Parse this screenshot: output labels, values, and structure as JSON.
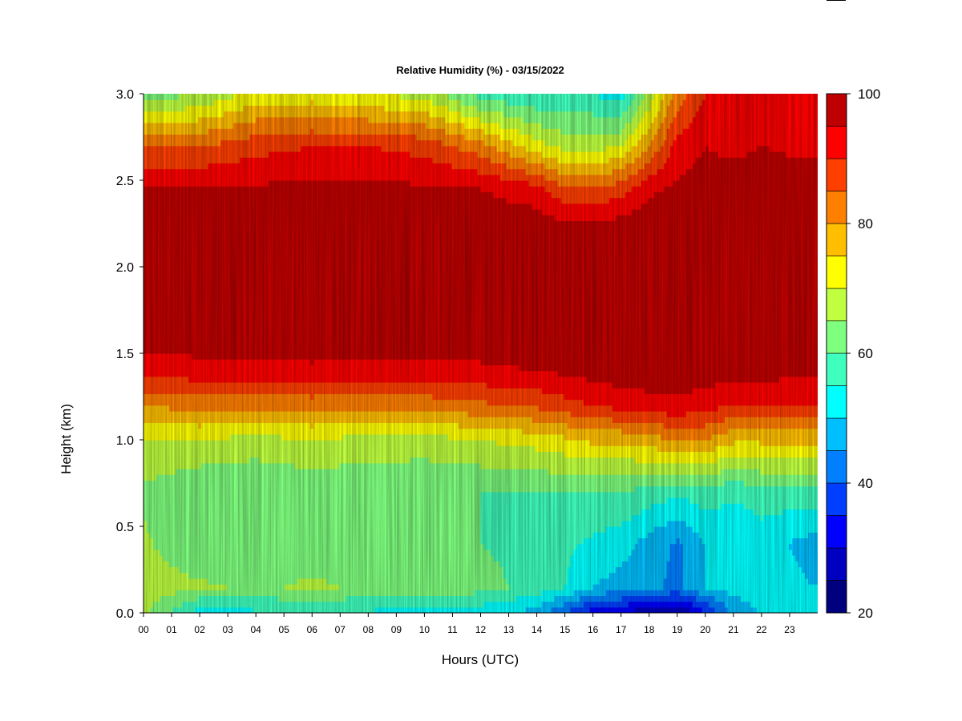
{
  "chart_data": {
    "type": "heatmap",
    "title": "Relative Humidity (%) - 03/15/2022",
    "xlabel": "Hours (UTC)",
    "ylabel": "Height (km)",
    "x_ticks": [
      "00",
      "01",
      "02",
      "03",
      "04",
      "05",
      "06",
      "07",
      "08",
      "09",
      "10",
      "11",
      "12",
      "13",
      "14",
      "15",
      "16",
      "17",
      "18",
      "19",
      "20",
      "21",
      "22",
      "23"
    ],
    "xlim": [
      0,
      24
    ],
    "y_ticks": [
      "0.0",
      "0.5",
      "1.0",
      "1.5",
      "2.0",
      "2.5",
      "3.0"
    ],
    "ylim": [
      0,
      3
    ],
    "colorbar": {
      "ticks": [
        "20",
        "40",
        "60",
        "80",
        "100"
      ],
      "range": [
        20,
        100
      ],
      "levels": [
        20,
        25,
        30,
        35,
        40,
        45,
        50,
        55,
        60,
        65,
        70,
        75,
        80,
        85,
        90,
        95,
        100
      ],
      "colors": [
        "#00007f",
        "#0000c0",
        "#0000ff",
        "#003fff",
        "#007fff",
        "#00bfff",
        "#00ffff",
        "#3fffbf",
        "#7fff7f",
        "#bfff3f",
        "#ffff00",
        "#ffbf00",
        "#ff7f00",
        "#ff3f00",
        "#ff0000",
        "#bf0000",
        "#7f0000"
      ]
    },
    "grid": false,
    "legend": "colorbar-right",
    "profile_hours": [
      0,
      2,
      4,
      6,
      8,
      10,
      12,
      14,
      15,
      16,
      17,
      18,
      19,
      20,
      21,
      22,
      23.8
    ],
    "profile_heights_km": [
      0.0,
      0.15,
      0.4,
      0.7,
      1.0,
      1.2,
      1.4,
      1.6,
      1.9,
      2.2,
      2.45,
      2.7,
      3.0
    ],
    "rh_profiles": [
      [
        66,
        68,
        66,
        64,
        70,
        80,
        92,
        98,
        99,
        99,
        95,
        85,
        62
      ],
      [
        52,
        66,
        60,
        60,
        70,
        82,
        93,
        98,
        99,
        99,
        95,
        85,
        65
      ],
      [
        54,
        64,
        62,
        60,
        68,
        82,
        93,
        98,
        99,
        99,
        96,
        88,
        72
      ],
      [
        54,
        66,
        62,
        61,
        70,
        82,
        94,
        98,
        99,
        99,
        96,
        90,
        72
      ],
      [
        54,
        64,
        62,
        61,
        68,
        82,
        93,
        98,
        99,
        99,
        96,
        90,
        70
      ],
      [
        53,
        64,
        62,
        60,
        68,
        82,
        93,
        98,
        99,
        99,
        96,
        88,
        68
      ],
      [
        52,
        62,
        60,
        60,
        70,
        84,
        94,
        98,
        99,
        99,
        95,
        82,
        58
      ],
      [
        48,
        58,
        58,
        60,
        72,
        86,
        95,
        99,
        99,
        99,
        92,
        72,
        55
      ],
      [
        40,
        55,
        56,
        60,
        74,
        88,
        96,
        99,
        99,
        98,
        86,
        68,
        56
      ],
      [
        32,
        50,
        54,
        60,
        76,
        90,
        97,
        99,
        99,
        98,
        85,
        68,
        55
      ],
      [
        30,
        48,
        52,
        60,
        76,
        92,
        98,
        99,
        99,
        99,
        88,
        70,
        52
      ],
      [
        26,
        46,
        48,
        58,
        78,
        93,
        98,
        99,
        99,
        99,
        94,
        80,
        66
      ],
      [
        24,
        44,
        44,
        56,
        80,
        94,
        98,
        99,
        99,
        99,
        96,
        92,
        82
      ],
      [
        34,
        50,
        50,
        58,
        80,
        92,
        98,
        99,
        99,
        99,
        97,
        95,
        90
      ],
      [
        46,
        52,
        50,
        56,
        76,
        90,
        97,
        99,
        99,
        99,
        97,
        94,
        92
      ],
      [
        50,
        54,
        52,
        58,
        76,
        90,
        97,
        99,
        99,
        99,
        97,
        95,
        90
      ],
      [
        52,
        50,
        48,
        58,
        76,
        90,
        96,
        99,
        99,
        99,
        97,
        94,
        92
      ]
    ]
  }
}
